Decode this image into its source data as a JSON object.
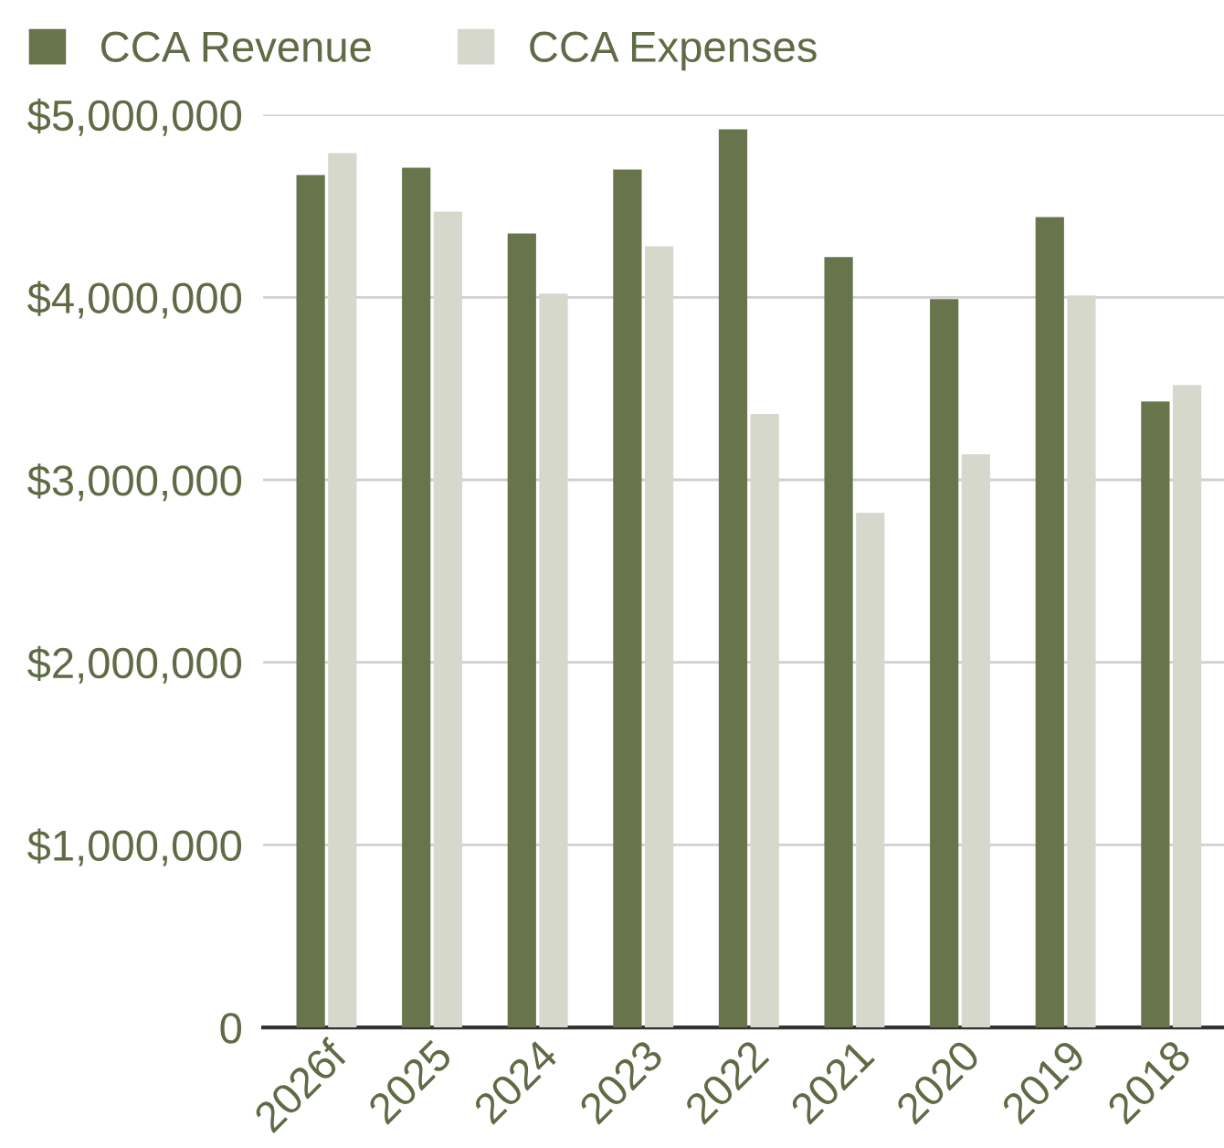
{
  "chart_data": {
    "type": "bar",
    "categories": [
      "2026f",
      "2025",
      "2024",
      "2023",
      "2022",
      "2021",
      "2020",
      "2019",
      "2018"
    ],
    "series": [
      {
        "name": "CCA Revenue",
        "color": "#68744b",
        "values": [
          4670000,
          4710000,
          4350000,
          4700000,
          4920000,
          4220000,
          3990000,
          4440000,
          3430000
        ]
      },
      {
        "name": "CCA Expenses",
        "color": "#d6d8cc",
        "values": [
          4790000,
          4470000,
          4020000,
          4280000,
          3360000,
          2820000,
          3140000,
          4010000,
          3520000
        ]
      }
    ],
    "ylim": [
      0,
      5000000
    ],
    "yticks": [
      {
        "value": 0,
        "label": "0"
      },
      {
        "value": 1000000,
        "label": "$1,000,000"
      },
      {
        "value": 2000000,
        "label": "$2,000,000"
      },
      {
        "value": 3000000,
        "label": "$3,000,000"
      },
      {
        "value": 4000000,
        "label": "$4,000,000"
      },
      {
        "value": 5000000,
        "label": "$5,000,000"
      }
    ],
    "grid": "y",
    "legend": "top left"
  }
}
